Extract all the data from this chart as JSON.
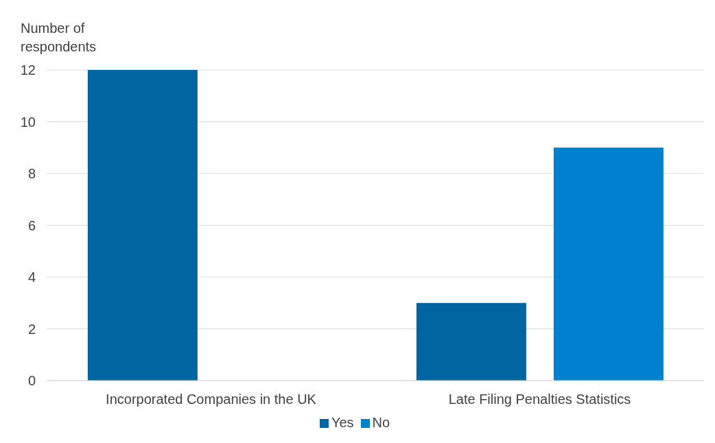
{
  "chart_data": {
    "type": "bar",
    "ylabel": "Number of respondents",
    "categories": [
      "Incorporated Companies in the UK",
      "Late Filing Penalties Statistics"
    ],
    "series": [
      {
        "name": "Yes",
        "color": "#0065a0",
        "values": [
          12,
          3
        ]
      },
      {
        "name": "No",
        "color": "#0081d0",
        "values": [
          0,
          9
        ]
      }
    ],
    "ylim": [
      0,
      12
    ],
    "yticks": [
      0,
      2,
      4,
      6,
      8,
      10,
      12
    ],
    "grid": "y",
    "legend": "bottom"
  }
}
